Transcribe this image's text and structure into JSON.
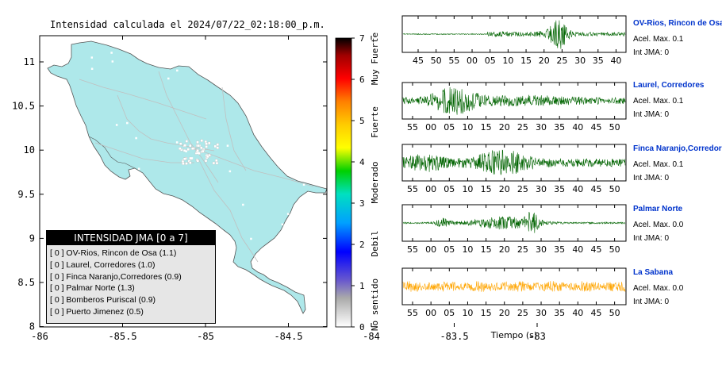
{
  "map": {
    "title": "Intensidad calculada el 2024/07/22_02:18:00_p.m.",
    "x_ticks": [
      "-86",
      "-85.5",
      "-85",
      "-84.5",
      "-84",
      "-83.5",
      "-83"
    ],
    "y_ticks": [
      "11",
      "10.5",
      "10",
      "9.5",
      "9",
      "8.5",
      "8"
    ],
    "land_color": "#aee8ea"
  },
  "colorbar": {
    "ticks": [
      "0",
      "1",
      "2",
      "3",
      "4",
      "5",
      "6",
      "7"
    ],
    "labels": [
      "No sentido",
      "Debil",
      "Moderado",
      "Fuerte",
      "Muy Fuerte"
    ]
  },
  "legend": {
    "header": "INTENSIDAD JMA [0 a 7]",
    "items": [
      "[ 0 ]  OV-Rios, Rincon de Osa (1.1)",
      "[ 0 ]  Laurel, Corredores (1.0)",
      "[ 0 ]  Finca Naranjo,Corredores (0.9)",
      "[ 0 ]  Palmar Norte (1.3)",
      "[ 0 ]  Bomberos Puriscal (0.9)",
      "[ 0 ]  Puerto Jimenez (0.5)"
    ]
  },
  "chart_data": [
    {
      "type": "heatmap",
      "title": "Intensidad calculada el 2024/07/22_02:18:00_p.m.",
      "xlim": [
        -86,
        -82.6
      ],
      "ylim": [
        8,
        11.3
      ],
      "x_ticks": [
        -86,
        -85.5,
        -85,
        -84.5,
        -84,
        -83.5,
        -83
      ],
      "y_ticks": [
        8,
        8.5,
        9,
        9.5,
        10,
        10.5,
        11
      ],
      "colorbar": {
        "range": [
          0,
          7
        ],
        "ticks": [
          0,
          1,
          2,
          3,
          4,
          5,
          6,
          7
        ],
        "labels": [
          "No sentido",
          "Debil",
          "Moderado",
          "Fuerte",
          "Muy Fuerte"
        ]
      },
      "legend": {
        "title": "INTENSIDAD JMA [0 a 7]",
        "entries": [
          {
            "station": "OV-Rios, Rincon de Osa",
            "jma_class": 0,
            "value": 1.1
          },
          {
            "station": "Laurel, Corredores",
            "jma_class": 0,
            "value": 1.0
          },
          {
            "station": "Finca Naranjo,Corredores",
            "jma_class": 0,
            "value": 0.9
          },
          {
            "station": "Palmar Norte",
            "jma_class": 0,
            "value": 1.3
          },
          {
            "station": "Bomberos Puriscal",
            "jma_class": 0,
            "value": 0.9
          },
          {
            "station": "Puerto Jimenez",
            "jma_class": 0,
            "value": 0.5
          }
        ]
      }
    },
    {
      "type": "line",
      "xlabel": "Tiempo (s)",
      "traces": [
        {
          "station": "OV-Rios, Rincon de Osa",
          "accel_label": "Acel. Max. 0.1",
          "jma_label": "Int JMA: 0",
          "color": "#006400",
          "ticks": [
            "45",
            "50",
            "55",
            "00",
            "05",
            "10",
            "15",
            "20",
            "25",
            "30",
            "35",
            "40"
          ]
        },
        {
          "station": "Laurel, Corredores",
          "accel_label": "Acel. Max. 0.1",
          "jma_label": "Int JMA: 0",
          "color": "#006400",
          "ticks": [
            "55",
            "00",
            "05",
            "10",
            "15",
            "20",
            "25",
            "30",
            "35",
            "40",
            "45",
            "50"
          ]
        },
        {
          "station": "Finca Naranjo,Corredores",
          "accel_label": "Acel. Max. 0.1",
          "jma_label": "Int JMA: 0",
          "color": "#006400",
          "ticks": [
            "55",
            "00",
            "05",
            "10",
            "15",
            "20",
            "25",
            "30",
            "35",
            "40",
            "45",
            "50"
          ]
        },
        {
          "station": "Palmar Norte",
          "accel_label": "Acel. Max. 0.0",
          "jma_label": "Int JMA: 0",
          "color": "#006400",
          "ticks": [
            "55",
            "00",
            "05",
            "10",
            "15",
            "20",
            "25",
            "30",
            "35",
            "40",
            "45",
            "50"
          ]
        },
        {
          "station": "La Sabana",
          "accel_label": "Acel. Max. 0.0",
          "jma_label": "Int JMA: 0",
          "color": "#ffa500",
          "ticks": [
            "55",
            "00",
            "05",
            "10",
            "15",
            "20",
            "25",
            "30",
            "35",
            "40",
            "45",
            "50"
          ]
        }
      ]
    }
  ]
}
